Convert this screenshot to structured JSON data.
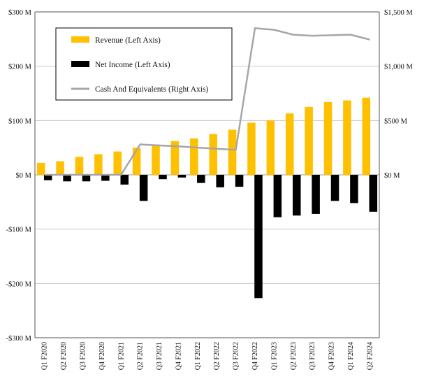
{
  "chart_data": {
    "type": "bar",
    "title": "",
    "categories": [
      "Q1 F2020",
      "Q2 F2020",
      "Q3 F2020",
      "Q4 F2020",
      "Q1 F2021",
      "Q2 F2021",
      "Q3 F2021",
      "Q4 F2021",
      "Q1 F2022",
      "Q2 F2022",
      "Q3 F2022",
      "Q4 F2022",
      "Q1 F2023",
      "Q2 F2023",
      "Q3 F2023",
      "Q4 F2023",
      "Q1 F2024",
      "Q2 F2024"
    ],
    "series": [
      {
        "name": "Revenue (Left Axis)",
        "axis": "left",
        "kind": "bar",
        "color": "#FFC000",
        "values": [
          22,
          25,
          33,
          38,
          43,
          50,
          56,
          62,
          67,
          75,
          83,
          96,
          100,
          113,
          125,
          134,
          137,
          142
        ]
      },
      {
        "name": "Net Income (Left Axis)",
        "axis": "left",
        "kind": "bar",
        "color": "#000000",
        "values": [
          -10,
          -12,
          -12,
          -11,
          -18,
          -48,
          -8,
          -5,
          -15,
          -23,
          -22,
          -227,
          -78,
          -75,
          -72,
          -48,
          -52,
          -68
        ]
      },
      {
        "name": "Cash And Equivalents (Right Axis)",
        "axis": "right",
        "kind": "line",
        "color": "#A6A6A6",
        "values": [
          0,
          0,
          0,
          0,
          0,
          280,
          270,
          262,
          250,
          240,
          230,
          1350,
          1335,
          1290,
          1280,
          1285,
          1290,
          1245
        ]
      }
    ],
    "left_axis": {
      "min": -300,
      "max": 300,
      "ticks": [
        300,
        200,
        100,
        0,
        -100,
        -200,
        -300
      ],
      "tick_labels": [
        "$300 M",
        "$200 M",
        "$100 M",
        "$0 M",
        "-$100 M",
        "-$200 M",
        "-$300 M"
      ]
    },
    "right_axis": {
      "min": -1500,
      "max": 1500,
      "ticks": [
        1500,
        1000,
        500,
        0
      ],
      "tick_labels": [
        "$1,500 M",
        "$1,000 M",
        "$500 M",
        "$0 M"
      ]
    },
    "grid": true,
    "legend_position": "top-left"
  }
}
